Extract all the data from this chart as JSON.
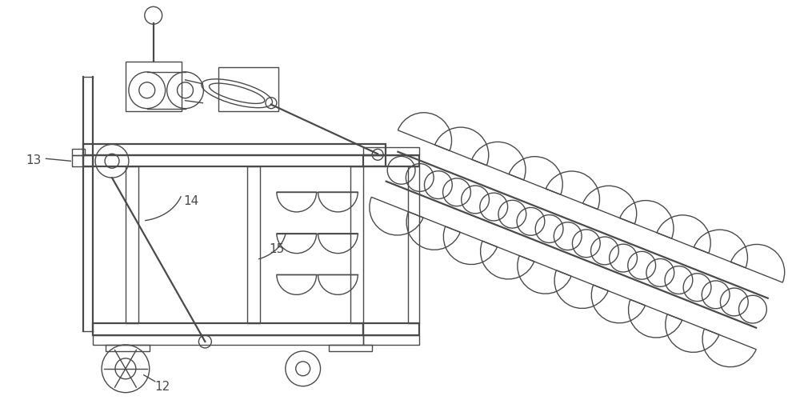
{
  "bg_color": "#ffffff",
  "line_color": "#4a4a4a",
  "lw": 1.0,
  "lw_thick": 1.6,
  "fig_width": 10.0,
  "fig_height": 5.0,
  "label_13": "13",
  "label_14": "14",
  "label_15": "15",
  "label_12": "12",
  "xlim": [
    0,
    10
  ],
  "ylim": [
    0,
    5
  ]
}
